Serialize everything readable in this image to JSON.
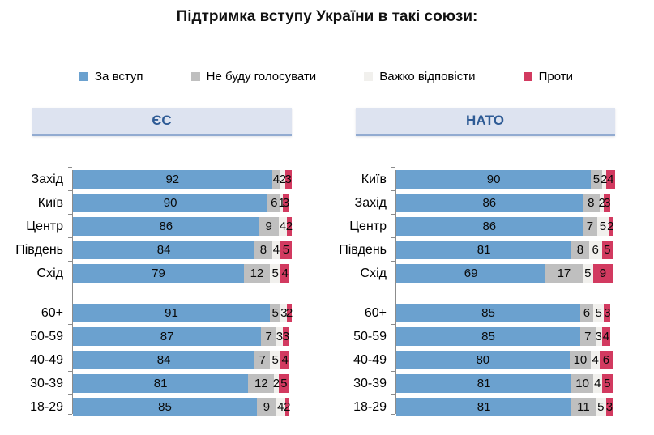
{
  "title": "Підтримка вступу України в такі союзи:",
  "legend": [
    {
      "label": "За вступ",
      "color": "#6ba1cf",
      "name": "for-joining"
    },
    {
      "label": "Не буду голосувати",
      "color": "#bfbfbf",
      "name": "wont-vote"
    },
    {
      "label": "Важко відповісти",
      "color": "#f1f0ed",
      "name": "hard-to-answer"
    },
    {
      "label": "Проти",
      "color": "#d23a60",
      "name": "against"
    }
  ],
  "chart_data": [
    {
      "type": "bar",
      "orientation": "horizontal",
      "stacked": true,
      "title": "ЄС",
      "xlim": [
        0,
        100
      ],
      "series_names": [
        "За вступ",
        "Не буду голосувати",
        "Важко відповісти",
        "Проти"
      ],
      "groups": [
        {
          "categories": [
            "Захід",
            "Київ",
            "Центр",
            "Південь",
            "Схід"
          ],
          "rows": [
            [
              92,
              4,
              2,
              3
            ],
            [
              90,
              6,
              1,
              3
            ],
            [
              86,
              9,
              4,
              2
            ],
            [
              84,
              8,
              4,
              5
            ],
            [
              79,
              12,
              5,
              4
            ]
          ]
        },
        {
          "categories": [
            "60+",
            "50-59",
            "40-49",
            "30-39",
            "18-29"
          ],
          "rows": [
            [
              91,
              5,
              3,
              2
            ],
            [
              87,
              7,
              3,
              3
            ],
            [
              84,
              7,
              5,
              4
            ],
            [
              81,
              12,
              2,
              5
            ],
            [
              85,
              9,
              4,
              2
            ]
          ]
        }
      ]
    },
    {
      "type": "bar",
      "orientation": "horizontal",
      "stacked": true,
      "title": "НАТО",
      "xlim": [
        0,
        100
      ],
      "series_names": [
        "За вступ",
        "Не буду голосувати",
        "Важко відповісти",
        "Проти"
      ],
      "groups": [
        {
          "categories": [
            "Київ",
            "Захід",
            "Центр",
            "Південь",
            "Схід"
          ],
          "rows": [
            [
              90,
              5,
              2,
              4
            ],
            [
              86,
              8,
              2,
              3
            ],
            [
              86,
              7,
              5,
              2
            ],
            [
              81,
              8,
              6,
              5
            ],
            [
              69,
              17,
              5,
              9
            ]
          ]
        },
        {
          "categories": [
            "60+",
            "50-59",
            "40-49",
            "30-39",
            "18-29"
          ],
          "rows": [
            [
              85,
              6,
              5,
              3
            ],
            [
              85,
              7,
              3,
              4
            ],
            [
              80,
              10,
              4,
              6
            ],
            [
              81,
              10,
              4,
              5
            ],
            [
              81,
              11,
              5,
              3
            ]
          ]
        }
      ]
    }
  ]
}
